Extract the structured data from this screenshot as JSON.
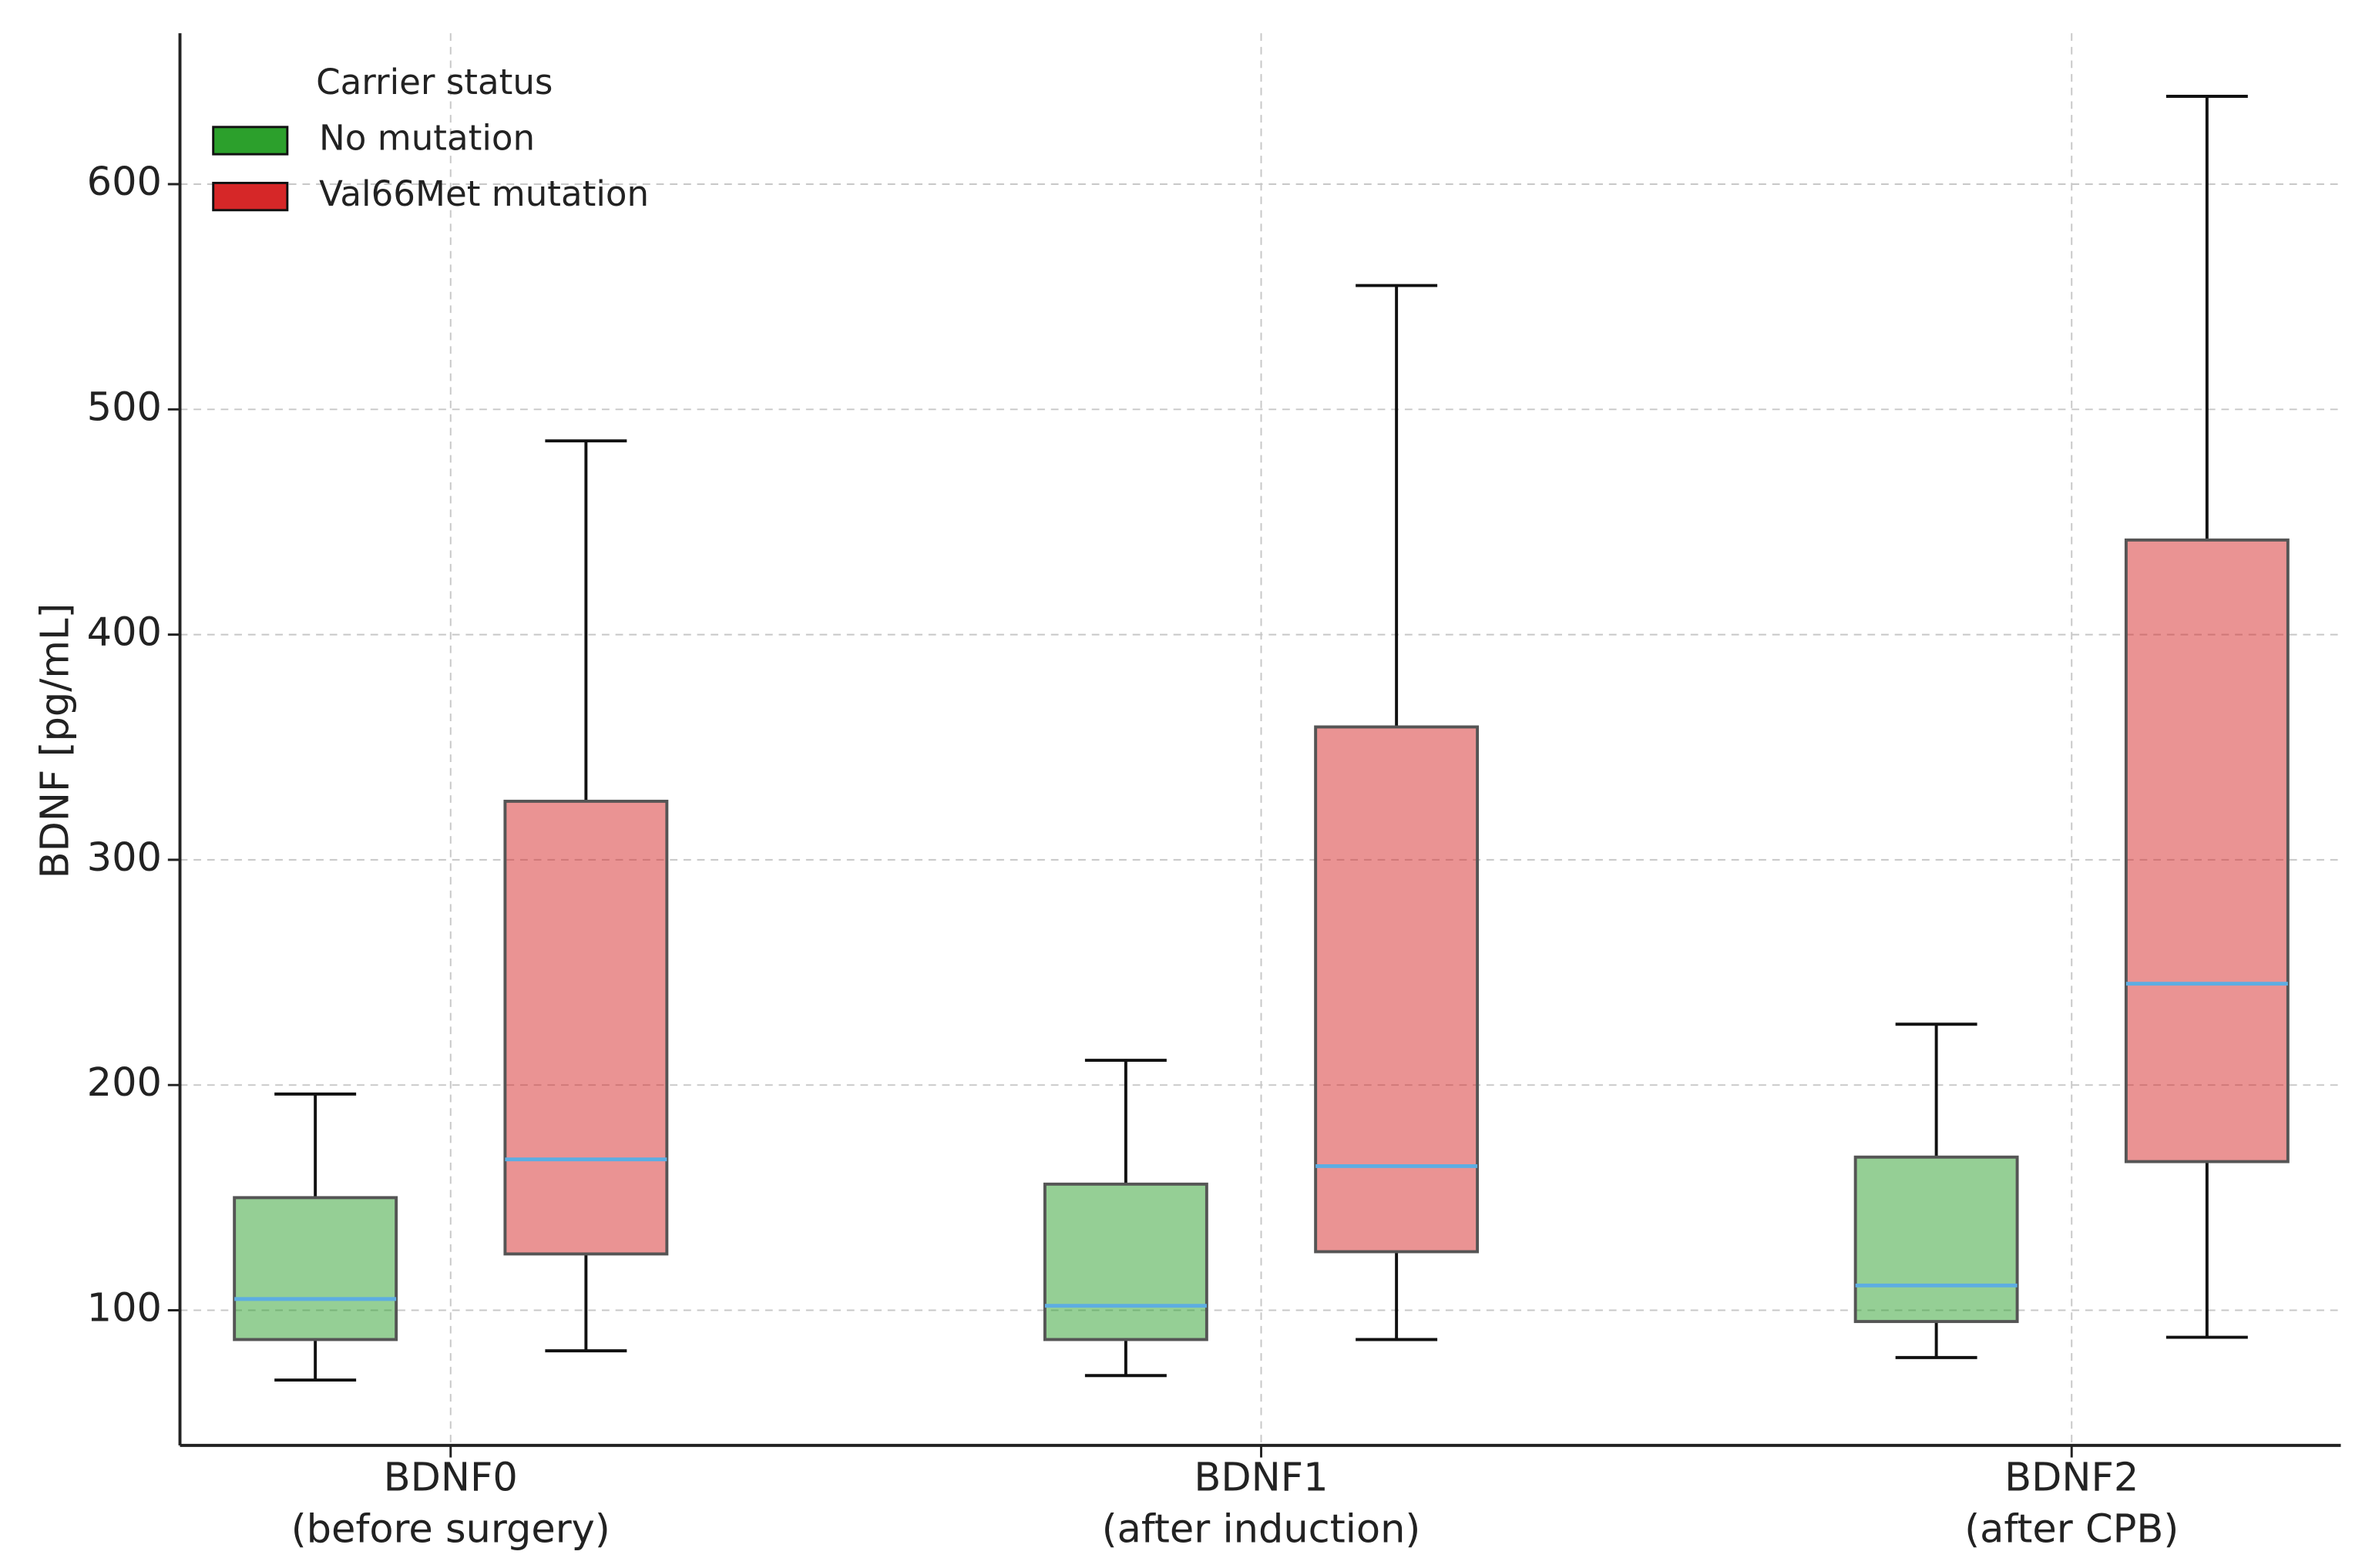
{
  "chart_data": {
    "type": "box",
    "ylabel": "BDNF [pg/mL]",
    "categories": [
      [
        "BDNF0",
        "(before surgery)"
      ],
      [
        "BDNF1",
        "(after induction)"
      ],
      [
        "BDNF2",
        "(after CPB)"
      ]
    ],
    "legend_title": "Carrier status",
    "legend": "upper left",
    "grid": true,
    "median_color": "#5dade2",
    "ylim": [
      40,
      667
    ],
    "yticks": [
      100,
      200,
      300,
      400,
      500,
      600
    ],
    "series": [
      {
        "name": "No mutation",
        "color": "#2ca02c",
        "whislo": [
          69,
          71,
          79
        ],
        "q1": [
          87,
          87,
          95
        ],
        "median": [
          105,
          102,
          111
        ],
        "q3": [
          150,
          156,
          168
        ],
        "whishi": [
          196,
          211,
          227
        ]
      },
      {
        "name": "Val66Met mutation",
        "color": "#d62728",
        "whislo": [
          82,
          87,
          88
        ],
        "q1": [
          125,
          126,
          166
        ],
        "median": [
          167,
          164,
          245
        ],
        "q3": [
          326,
          359,
          442
        ],
        "whishi": [
          486,
          555,
          639
        ]
      }
    ]
  }
}
